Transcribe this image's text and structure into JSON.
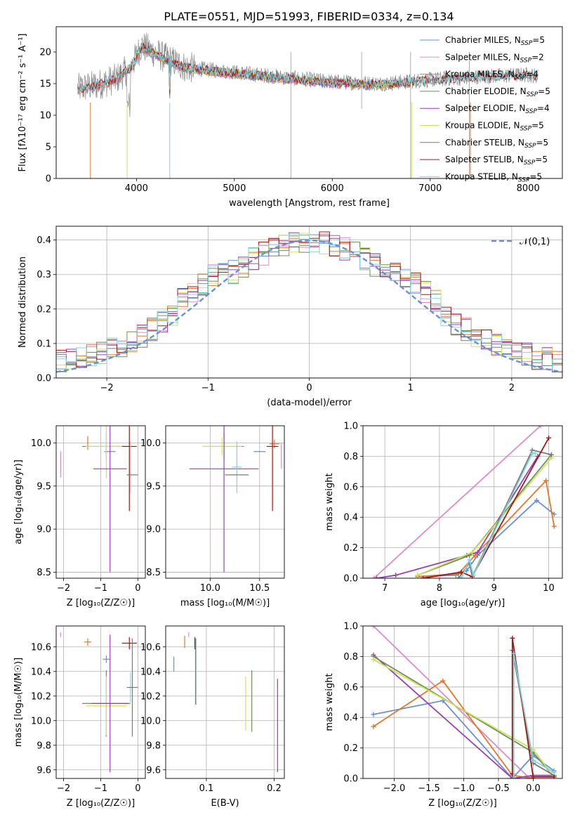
{
  "title": "PLATE=0551, MJD=51993, FIBERID=0334, z=0.134",
  "colors": {
    "Chabrier MILES": "#6a8fd4",
    "Salpeter MILES": "#e08cbf",
    "Kroupa MILES": "#e0782a",
    "Chabrier ELODIE": "#6f8f5a",
    "Salpeter ELODIE": "#9b3fb5",
    "Kroupa ELODIE": "#cfe060",
    "Chabrier STELIB": "#7a7a7a",
    "Salpeter STELIB": "#a01818",
    "Kroupa STELIB": "#7fd5dc"
  },
  "chart_data": [
    {
      "type": "line",
      "id": "spectrum",
      "xlabel": "wavelength [Angstrom, rest frame]",
      "ylabel": "Flux [fλ10⁻¹⁷ erg cm⁻² s⁻¹ A⁻¹]",
      "xlim": [
        3180,
        8350
      ],
      "ylim": [
        0,
        24
      ],
      "xticks": [
        4000,
        5000,
        6000,
        7000,
        8000
      ],
      "yticks": [
        0,
        5,
        10,
        15,
        20
      ],
      "legend_position": "top-right",
      "legend": [
        {
          "label": "Chabrier MILES, N",
          "sub": "SSP",
          "suffix": "=5"
        },
        {
          "label": "Salpeter MILES, N",
          "sub": "SSP",
          "suffix": "=2"
        },
        {
          "label": "Kroupa MILES, N",
          "sub": "SSP",
          "suffix": "=4"
        },
        {
          "label": "Chabrier ELODIE, N",
          "sub": "SSP",
          "suffix": "=5"
        },
        {
          "label": "Salpeter ELODIE, N",
          "sub": "SSP",
          "suffix": "=4"
        },
        {
          "label": "Kroupa ELODIE, N",
          "sub": "SSP",
          "suffix": "=5"
        },
        {
          "label": "Chabrier STELIB, N",
          "sub": "SSP",
          "suffix": "=5"
        },
        {
          "label": "Salpeter STELIB, N",
          "sub": "SSP",
          "suffix": "=5"
        },
        {
          "label": "Kroupa STELIB, N",
          "sub": "SSP",
          "suffix": "=5"
        }
      ],
      "continuum": [
        [
          3400,
          14.2
        ],
        [
          3600,
          14.8
        ],
        [
          3800,
          15.8
        ],
        [
          3950,
          17.8
        ],
        [
          4050,
          21.0
        ],
        [
          4300,
          19.0
        ],
        [
          4500,
          17.6
        ],
        [
          5000,
          16.8
        ],
        [
          5500,
          16.0
        ],
        [
          6000,
          15.3
        ],
        [
          6500,
          15.0
        ],
        [
          7000,
          15.6
        ],
        [
          7500,
          16.1
        ],
        [
          8000,
          16.4
        ],
        [
          8100,
          16.2
        ]
      ],
      "sky_lines": [
        [
          5577,
          0
        ],
        [
          6300,
          11.0
        ],
        [
          6800,
          0
        ],
        [
          7400,
          0
        ]
      ]
    },
    {
      "type": "step",
      "id": "residuals",
      "xlabel": "(data-model)/error",
      "ylabel": "Normed distribution",
      "xlim": [
        -2.5,
        2.5
      ],
      "ylim": [
        0,
        0.44
      ],
      "xticks": [
        -2,
        -1,
        0,
        1,
        2
      ],
      "yticks": [
        0.0,
        0.1,
        0.2,
        0.3,
        0.4
      ],
      "legend_position": "top-right",
      "gaussian_label": "𝒩(0,1)",
      "bin_width": 0.1,
      "x_start": -2.5
    },
    {
      "type": "errorbar",
      "id": "age-vs-Z",
      "xlabel": "Z [log₁₀(Z/Z☉)]",
      "ylabel": "age  [log₁₀(age/yr)]",
      "xlim": [
        -2.2,
        0.2
      ],
      "ylim": [
        8.43,
        10.2
      ],
      "xticks": [
        -2,
        -1,
        0
      ],
      "yticks": [
        8.5,
        9.0,
        9.5,
        10.0
      ]
    },
    {
      "type": "errorbar",
      "id": "age-vs-mass",
      "xlabel": "mass [log₁₀(M/M☉)]",
      "ylabel": "",
      "xlim": [
        9.55,
        10.75
      ],
      "ylim": [
        8.43,
        10.2
      ],
      "xticks": [
        10.0,
        10.5
      ],
      "yticks": [
        8.5,
        9.0,
        9.5,
        10.0
      ]
    },
    {
      "type": "line",
      "id": "weight-vs-age",
      "xlabel": "age  [log₁₀(age/yr)]",
      "ylabel": "mass weight",
      "xlim": [
        6.6,
        10.25
      ],
      "ylim": [
        0,
        1.0
      ],
      "xticks": [
        7,
        8,
        9,
        10
      ],
      "yticks": [
        0.0,
        0.2,
        0.4,
        0.6,
        0.8,
        1.0
      ]
    },
    {
      "type": "errorbar",
      "id": "mass-vs-Z",
      "xlabel": "Z [log₁₀(Z/Z☉)]",
      "ylabel": "mass [log₁₀(M/M☉)]",
      "xlim": [
        -2.2,
        0.2
      ],
      "ylim": [
        9.53,
        10.77
      ],
      "xticks": [
        -2,
        -1,
        0
      ],
      "yticks": [
        9.6,
        9.8,
        10.0,
        10.2,
        10.4,
        10.6
      ]
    },
    {
      "type": "errorbar",
      "id": "mass-vs-EBV",
      "xlabel": "E(B-V)",
      "ylabel": "",
      "xlim": [
        0.04,
        0.215
      ],
      "ylim": [
        9.53,
        10.77
      ],
      "xticks": [
        0.1,
        0.2
      ],
      "yticks": [
        9.6,
        9.8,
        10.0,
        10.2,
        10.4,
        10.6
      ]
    },
    {
      "type": "line",
      "id": "weight-vs-Z",
      "xlabel": "Z [log₁₀(Z/Z☉)]",
      "ylabel": "mass weight",
      "xlim": [
        -2.45,
        0.42
      ],
      "ylim": [
        0,
        1.0
      ],
      "xticks": [
        -2.0,
        -1.5,
        -1.0,
        -0.5,
        0.0
      ],
      "yticks": [
        0.0,
        0.2,
        0.4,
        0.6,
        0.8,
        1.0
      ]
    }
  ],
  "errorbars": {
    "age_Z": [
      {
        "s": "Salpeter MILES",
        "x": -2.08,
        "xe": 0.0,
        "y": 9.75,
        "ye": 0.15
      },
      {
        "s": "Kroupa MILES",
        "x": -1.35,
        "xe": 0.0,
        "y": 10.0,
        "ye": 0.08
      },
      {
        "s": "Chabrier MILES",
        "x": -0.75,
        "xe": 0.15,
        "y": 9.9,
        "ye": 0.0
      },
      {
        "s": "Chabrier ELODIE",
        "x": -0.85,
        "xe": 0.65,
        "y": 9.96,
        "ye": 0.15
      },
      {
        "s": "Kroupa ELODIE",
        "x": -0.85,
        "xe": 0.55,
        "y": 9.96,
        "ye": 0.37
      },
      {
        "s": "Salpeter ELODIE",
        "x": -0.75,
        "xe": 0.45,
        "y": 9.7,
        "ye": 1.2
      },
      {
        "s": "Salpeter STELIB",
        "x": -0.23,
        "xe": 0.2,
        "y": 9.96,
        "ye": 0.75
      },
      {
        "s": "Kroupa STELIB",
        "x": -0.2,
        "xe": 0.0,
        "y": 9.72,
        "ye": 0.3
      },
      {
        "s": "Chabrier STELIB",
        "x": -0.15,
        "xe": 0.15,
        "y": 9.63,
        "ye": 0.0
      }
    ],
    "age_mass": [
      {
        "s": "Salpeter MILES",
        "x": 10.72,
        "xe": 0.0,
        "y": 9.85,
        "ye": 0.15
      },
      {
        "s": "Kroupa MILES",
        "x": 10.65,
        "xe": 0.05,
        "y": 9.99,
        "ye": 0.05
      },
      {
        "s": "Chabrier MILES",
        "x": 10.5,
        "xe": 0.06,
        "y": 9.9,
        "ye": 0.0
      },
      {
        "s": "Chabrier ELODIE",
        "x": 10.14,
        "xe": 0.2,
        "y": 9.96,
        "ye": 0.15
      },
      {
        "s": "Kroupa ELODIE",
        "x": 10.12,
        "xe": 0.2,
        "y": 9.96,
        "ye": 0.1
      },
      {
        "s": "Salpeter ELODIE",
        "x": 10.14,
        "xe": 0.35,
        "y": 9.7,
        "ye": 1.2
      },
      {
        "s": "Salpeter STELIB",
        "x": 10.63,
        "xe": 0.06,
        "y": 9.96,
        "ye": 0.75
      },
      {
        "s": "Kroupa STELIB",
        "x": 10.27,
        "xe": 0.05,
        "y": 9.72,
        "ye": 0.3
      },
      {
        "s": "Chabrier STELIB",
        "x": 10.27,
        "xe": 0.12,
        "y": 9.63,
        "ye": 0.0
      }
    ],
    "mass_Z": [
      {
        "s": "Salpeter MILES",
        "x": -2.08,
        "xe": 0.0,
        "y": 10.7,
        "ye": 0.02
      },
      {
        "s": "Kroupa MILES",
        "x": -1.35,
        "xe": 0.1,
        "y": 10.64,
        "ye": 0.03
      },
      {
        "s": "Chabrier MILES",
        "x": -0.85,
        "xe": 0.1,
        "y": 10.5,
        "ye": 0.03
      },
      {
        "s": "Chabrier ELODIE",
        "x": -0.85,
        "xe": 0.65,
        "y": 10.14,
        "ye": 0.27
      },
      {
        "s": "Kroupa ELODIE",
        "x": -0.85,
        "xe": 0.55,
        "y": 10.12,
        "ye": 0.24
      },
      {
        "s": "Salpeter ELODIE",
        "x": -0.75,
        "xe": 0.5,
        "y": 10.14,
        "ye": 0.56
      },
      {
        "s": "Salpeter STELIB",
        "x": -0.23,
        "xe": 0.2,
        "y": 10.63,
        "ye": 0.05
      },
      {
        "s": "Kroupa STELIB",
        "x": -0.2,
        "xe": 0.0,
        "y": 10.27,
        "ye": 0.12
      },
      {
        "s": "Chabrier STELIB",
        "x": -0.15,
        "xe": 0.15,
        "y": 10.27,
        "ye": 0.4
      }
    ],
    "mass_EBV": [
      {
        "s": "Chabrier MILES",
        "x": 0.052,
        "y": 10.46,
        "ye": 0.06
      },
      {
        "s": "Kroupa MILES",
        "x": 0.068,
        "y": 10.64,
        "ye": 0.05
      },
      {
        "s": "Salpeter MILES",
        "x": 0.074,
        "y": 10.7,
        "ye": 0.02
      },
      {
        "s": "Salpeter STELIB",
        "x": 0.083,
        "y": 10.63,
        "ye": 0.05
      },
      {
        "s": "Chabrier STELIB",
        "x": 0.084,
        "y": 10.4,
        "ye": 0.27
      },
      {
        "s": "Kroupa STELIB",
        "x": 0.085,
        "y": 10.4,
        "ye": 0.27
      },
      {
        "s": "Kroupa ELODIE",
        "x": 0.158,
        "y": 10.14,
        "ye": 0.22
      },
      {
        "s": "Chabrier ELODIE",
        "x": 0.167,
        "y": 10.16,
        "ye": 0.25
      },
      {
        "s": "Salpeter ELODIE",
        "x": 0.205,
        "y": 9.96,
        "ye": 0.38
      }
    ]
  },
  "weights": {
    "vs_age": [
      {
        "s": "Salpeter MILES",
        "pts": [
          [
            6.8,
            0.0
          ],
          [
            9.85,
            1.0
          ]
        ]
      },
      {
        "s": "Chabrier MILES",
        "pts": [
          [
            7.6,
            0.01
          ],
          [
            8.3,
            0.02
          ],
          [
            8.5,
            0.05
          ],
          [
            8.7,
            0.15
          ],
          [
            9.78,
            0.51
          ],
          [
            10.1,
            0.42
          ]
        ]
      },
      {
        "s": "Kroupa MILES",
        "pts": [
          [
            7.6,
            0.01
          ],
          [
            8.35,
            0.03
          ],
          [
            8.65,
            0.15
          ],
          [
            9.95,
            0.64
          ],
          [
            10.1,
            0.34
          ]
        ]
      },
      {
        "s": "Salpeter ELODIE",
        "pts": [
          [
            6.85,
            0.0
          ],
          [
            7.2,
            0.02
          ],
          [
            8.5,
            0.15
          ],
          [
            8.7,
            0.17
          ],
          [
            9.8,
            0.8
          ]
        ]
      },
      {
        "s": "Chabrier ELODIE",
        "pts": [
          [
            7.6,
            0.02
          ],
          [
            8.55,
            0.15
          ],
          [
            10.05,
            0.81
          ]
        ]
      },
      {
        "s": "Kroupa ELODIE",
        "pts": [
          [
            7.6,
            0.02
          ],
          [
            8.6,
            0.17
          ],
          [
            10.05,
            0.79
          ]
        ]
      },
      {
        "s": "Chabrier STELIB",
        "pts": [
          [
            8.35,
            0.0
          ],
          [
            8.55,
            0.1
          ],
          [
            8.6,
            0.01
          ],
          [
            9.7,
            0.84
          ],
          [
            10.05,
            0.81
          ]
        ]
      },
      {
        "s": "Salpeter STELIB",
        "pts": [
          [
            7.7,
            0.0
          ],
          [
            8.4,
            0.04
          ],
          [
            8.6,
            0.01
          ],
          [
            10.0,
            0.92
          ]
        ]
      },
      {
        "s": "Kroupa STELIB",
        "pts": [
          [
            8.4,
            0.0
          ],
          [
            8.55,
            0.12
          ],
          [
            8.62,
            0.02
          ],
          [
            9.7,
            0.82
          ],
          [
            9.75,
            0.82
          ]
        ]
      }
    ],
    "vs_Z": [
      {
        "s": "Salpeter MILES",
        "pts": [
          [
            -2.3,
            1.0
          ],
          [
            -0.05,
            0.0
          ]
        ]
      },
      {
        "s": "Chabrier MILES",
        "pts": [
          [
            -2.3,
            0.42
          ],
          [
            -1.3,
            0.51
          ],
          [
            -0.3,
            0.0
          ],
          [
            0.0,
            0.15
          ],
          [
            0.3,
            0.05
          ]
        ]
      },
      {
        "s": "Kroupa MILES",
        "pts": [
          [
            -2.3,
            0.34
          ],
          [
            -1.3,
            0.64
          ],
          [
            -0.3,
            0.02
          ],
          [
            0.0,
            0.0
          ]
        ]
      },
      {
        "s": "Salpeter ELODIE",
        "pts": [
          [
            -2.3,
            0.81
          ],
          [
            -0.3,
            0.0
          ],
          [
            0.0,
            0.02
          ],
          [
            0.3,
            0.02
          ]
        ]
      },
      {
        "s": "Chabrier ELODIE",
        "pts": [
          [
            -2.3,
            0.8
          ],
          [
            0.0,
            0.17
          ],
          [
            0.3,
            0.01
          ]
        ]
      },
      {
        "s": "Kroupa ELODIE",
        "pts": [
          [
            -2.3,
            0.78
          ],
          [
            0.0,
            0.19
          ],
          [
            0.3,
            0.01
          ]
        ]
      },
      {
        "s": "Chabrier STELIB",
        "pts": [
          [
            -0.3,
            0.0
          ],
          [
            -0.3,
            0.84
          ],
          [
            0.0,
            0.1
          ],
          [
            0.3,
            0.02
          ]
        ]
      },
      {
        "s": "Salpeter STELIB",
        "pts": [
          [
            -0.3,
            0.03
          ],
          [
            -0.3,
            0.92
          ],
          [
            0.0,
            0.01
          ],
          [
            0.3,
            0.01
          ]
        ]
      },
      {
        "s": "Kroupa STELIB",
        "pts": [
          [
            -0.28,
            0.0
          ],
          [
            -0.28,
            0.82
          ],
          [
            0.0,
            0.12
          ],
          [
            0.3,
            0.04
          ]
        ]
      }
    ]
  }
}
